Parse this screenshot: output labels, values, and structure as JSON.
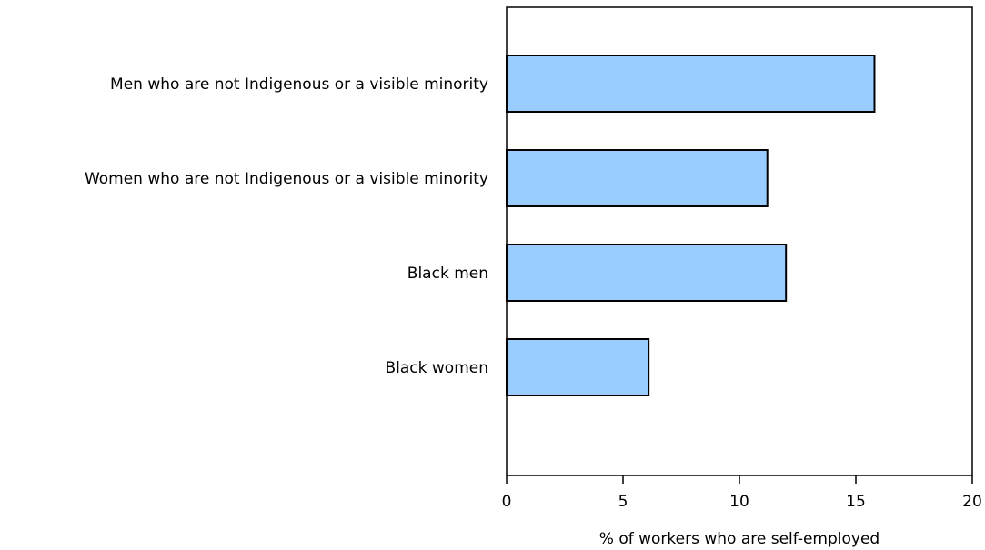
{
  "chart_data": {
    "type": "bar",
    "orientation": "horizontal",
    "categories": [
      "Men who are not Indigenous or a visible minority",
      "Women who are not Indigenous or a visible minority",
      "Black men",
      "Black women"
    ],
    "values": [
      15.8,
      11.2,
      12.0,
      6.1
    ],
    "title": "",
    "xlabel": "% of workers who are self-employed",
    "ylabel": "",
    "xlim": [
      0,
      20
    ],
    "xticks": [
      0,
      5,
      10,
      15,
      20
    ],
    "xtick_labels": [
      "0",
      "5",
      "10",
      "15",
      "20"
    ],
    "grid": false,
    "legend": "none",
    "colors": {
      "bar_fill": "#99ccff",
      "bar_stroke": "#000000",
      "frame": "#000000",
      "text": "#000000"
    }
  }
}
